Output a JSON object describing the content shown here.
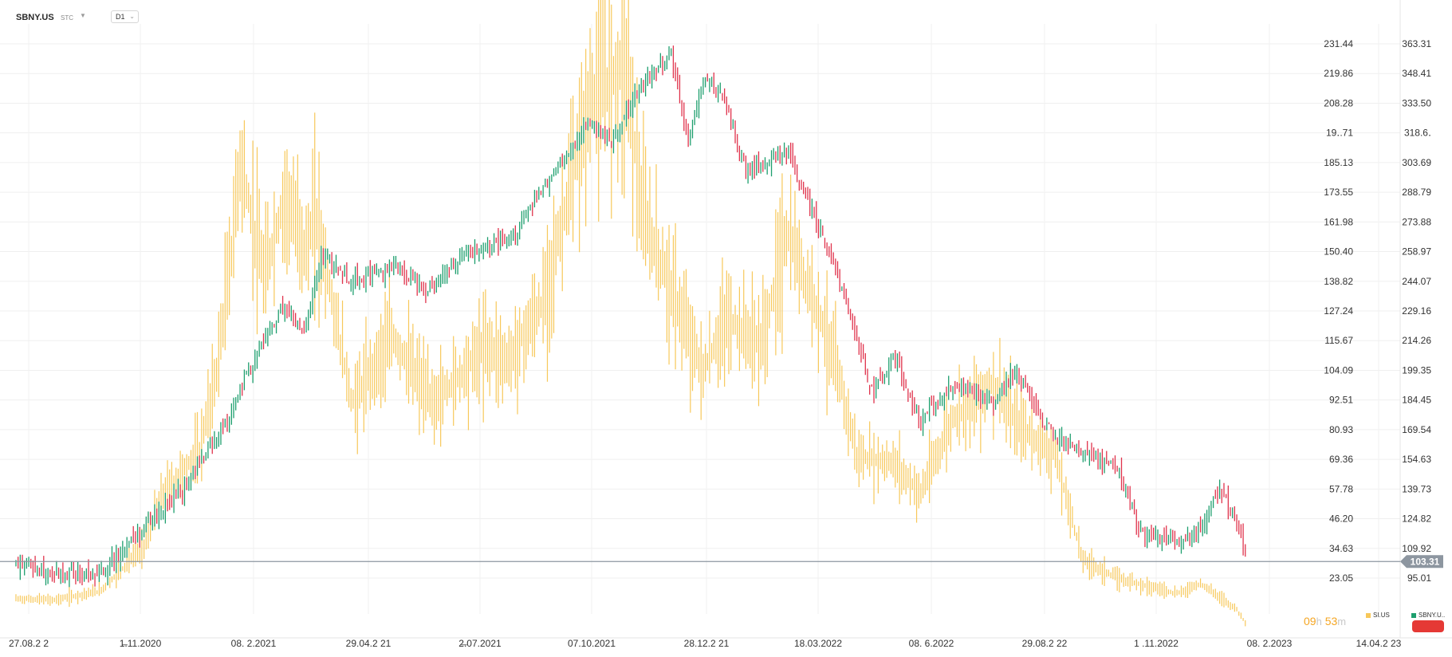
{
  "toolbar": {
    "symbol": "SBNY.US",
    "exchange": "STC",
    "timeframe": "D1"
  },
  "chart_data": {
    "type": "ohlc",
    "series": [
      {
        "name": "SBNY.US",
        "axis": "right",
        "style": "ohlc-bars",
        "up_color": "#1e9f6e",
        "down_color": "#e0334c"
      },
      {
        "name": "SI.US",
        "axis": "left",
        "style": "hl-bars",
        "color": "#f7c85a"
      }
    ],
    "x_ticks": [
      "27.08.2  2",
      "1̶.11.2020",
      "08.  2.2021",
      "29.04.2  21",
      "2̶.07.2021",
      "07.10.2021",
      "28.12.2  21",
      "18.03.2022",
      "08.  6.2022",
      "29.08.2  22",
      "1  .11.2022",
      "08.  2.2023",
      "14.04.2  23"
    ],
    "y_ticks_left": [
      "231.44",
      "219.86",
      "208.28",
      "19․.71",
      "185.13",
      "173.55",
      "161.98",
      "150.40",
      "138.82",
      "127.24",
      "115.67",
      "104.09",
      "92.51",
      "80.93",
      "69.36",
      "57.78",
      "46.20",
      "34.63",
      "23.05"
    ],
    "y_ticks_right": [
      "363.31",
      "348.41",
      "333.50",
      "318.6․",
      "303.69",
      "288.79",
      "273.88",
      "258.97",
      "244.07",
      "229.16",
      "214.26",
      "199.35",
      "184.45",
      "169.54",
      "154.63",
      "139.73",
      "124.82",
      "109.92",
      "95.01"
    ],
    "current_price": "103.31",
    "current_price_color": "#8d96a0",
    "sbny_path": [
      [
        "2020-08-27",
        103.3
      ],
      [
        "2020-09-25",
        97.5
      ],
      [
        "2020-10-29",
        96.4
      ],
      [
        "2020-11-10",
        106.4
      ],
      [
        "2020-12-01",
        120.1
      ],
      [
        "2021-01-01",
        141.0
      ],
      [
        "2021-01-31",
        172.8
      ],
      [
        "2021-02-28",
        213.3
      ],
      [
        "2021-03-15",
        230.5
      ],
      [
        "2021-03-31",
        218.1
      ],
      [
        "2021-04-13",
        256.1
      ],
      [
        "2021-05-06",
        244.5
      ],
      [
        "2021-06-05",
        251.6
      ],
      [
        "2021-06-30",
        240.5
      ],
      [
        "2021-07-31",
        257.7
      ],
      [
        "2021-08-31",
        263.7
      ],
      [
        "2021-09-30",
        293.9
      ],
      [
        "2021-10-31",
        324.6
      ],
      [
        "2021-11-17",
        314.3
      ],
      [
        "2021-12-04",
        337.7
      ],
      [
        "2021-12-31",
        359.1
      ],
      [
        "2022-01-13",
        313.9
      ],
      [
        "2022-01-24",
        346.6
      ],
      [
        "2022-02-08",
        336.0
      ],
      [
        "2022-02-26",
        298.6
      ],
      [
        "2022-03-28",
        309.0
      ],
      [
        "2022-04-21",
        270.6
      ],
      [
        "2022-05-12",
        234.3
      ],
      [
        "2022-05-30",
        188.1
      ],
      [
        "2022-06-16",
        205.5
      ],
      [
        "2022-07-06",
        174.7
      ],
      [
        "2022-07-31",
        191.4
      ],
      [
        "2022-08-31",
        183.5
      ],
      [
        "2022-09-15",
        199.7
      ],
      [
        "2022-10-15",
        164.9
      ],
      [
        "2022-11-05",
        157.1
      ],
      [
        "2022-12-01",
        150.8
      ],
      [
        "2022-12-16",
        119.0
      ],
      [
        "2023-01-15",
        113.1
      ],
      [
        "2023-02-01",
        120.1
      ],
      [
        "2023-02-15",
        139.9
      ],
      [
        "2023-02-28",
        123.8
      ],
      [
        "2023-03-08",
        103.3
      ]
    ],
    "si_path": [
      [
        "2020-08-27",
        15.0
      ],
      [
        "2020-09-25",
        14.5
      ],
      [
        "2020-10-29",
        18.0
      ],
      [
        "2020-11-10",
        24.0
      ],
      [
        "2020-12-01",
        36.0
      ],
      [
        "2020-12-15",
        56.0
      ],
      [
        "2021-01-01",
        66.0
      ],
      [
        "2021-01-11",
        72.0
      ],
      [
        "2021-01-24",
        102.0
      ],
      [
        "2021-02-05",
        152.0
      ],
      [
        "2021-02-11",
        186.0
      ],
      [
        "2021-03-01",
        140.0
      ],
      [
        "2021-03-17",
        172.0
      ],
      [
        "2021-04-02",
        150.0
      ],
      [
        "2021-04-08",
        166.0
      ],
      [
        "2021-05-06",
        91.0
      ],
      [
        "2021-06-05",
        117.0
      ],
      [
        "2021-07-06",
        91.0
      ],
      [
        "2021-08-15",
        114.0
      ],
      [
        "2021-08-31",
        107.0
      ],
      [
        "2021-09-27",
        131.0
      ],
      [
        "2021-10-15",
        172.0
      ],
      [
        "2021-11-02",
        212.0
      ],
      [
        "2021-11-28",
        223.0
      ],
      [
        "2021-12-09",
        166.0
      ],
      [
        "2021-12-31",
        136.0
      ],
      [
        "2022-01-24",
        103.0
      ],
      [
        "2022-02-11",
        124.0
      ],
      [
        "2022-03-09",
        114.0
      ],
      [
        "2022-03-28",
        157.0
      ],
      [
        "2022-04-21",
        127.0
      ],
      [
        "2022-05-06",
        101.0
      ],
      [
        "2022-05-20",
        70.0
      ],
      [
        "2022-06-16",
        68.0
      ],
      [
        "2022-07-06",
        56.0
      ],
      [
        "2022-07-31",
        86.0
      ],
      [
        "2022-08-31",
        99.0
      ],
      [
        "2022-09-15",
        84.0
      ],
      [
        "2022-10-15",
        71.0
      ],
      [
        "2022-11-05",
        30.0
      ],
      [
        "2022-12-01",
        23.0
      ],
      [
        "2023-01-15",
        17.0
      ],
      [
        "2023-02-01",
        21.0
      ],
      [
        "2023-02-28",
        11.0
      ],
      [
        "2023-03-08",
        4.5
      ]
    ]
  },
  "status": {
    "timer_hours": "09",
    "timer_h_unit": "h",
    "timer_minutes": "53",
    "timer_m_unit": "m"
  },
  "legend": [
    {
      "label": "SI.US",
      "color": "#f7c85a"
    },
    {
      "label": "SBNY.U..",
      "color": "#1e9f6e"
    }
  ],
  "alert_color": "#e53935"
}
